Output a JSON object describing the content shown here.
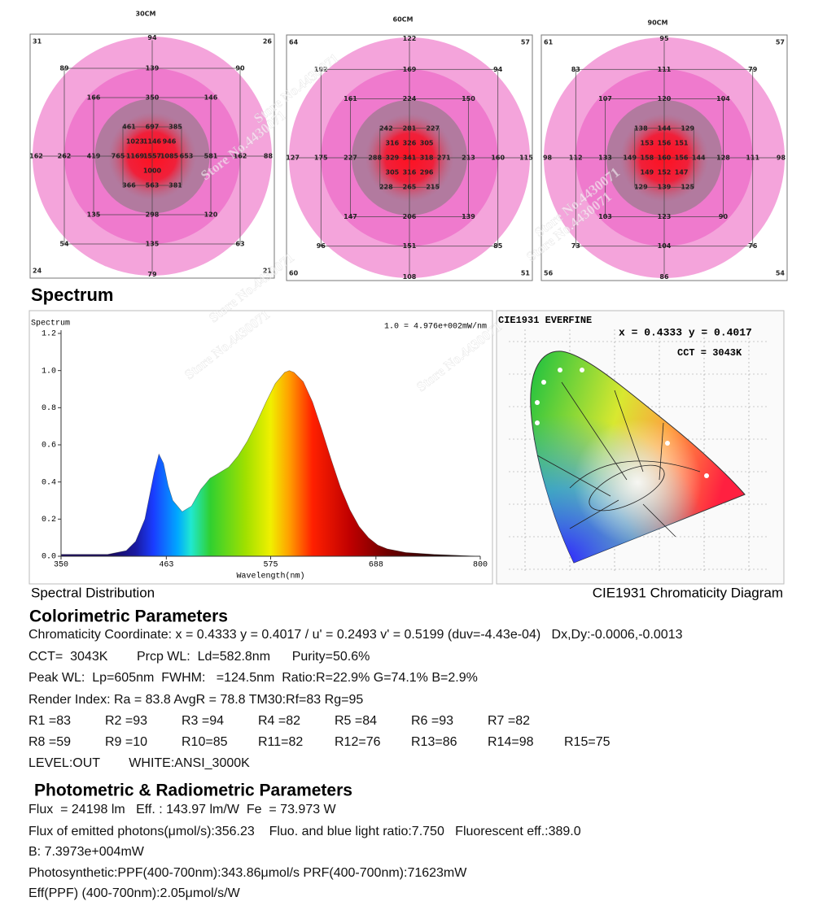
{
  "watermark": "Store No.4430071",
  "light_maps": [
    {
      "title": "30CM",
      "corners": [
        "31",
        "26",
        "24",
        "21"
      ],
      "outer": [
        "94",
        "79",
        "162",
        "88"
      ],
      "ring2": [
        "89",
        "139",
        "90",
        "54",
        "135",
        "63"
      ],
      "ring3": [
        "166",
        "350",
        "146",
        "135",
        "298",
        "120"
      ],
      "sides": [
        "262",
        "419",
        "581",
        "162"
      ],
      "inner": [
        [
          "461",
          "697",
          "385"
        ],
        [
          "1023",
          "1146",
          "946"
        ],
        [
          "765",
          "1169",
          "1557",
          "1085",
          "653"
        ],
        [
          "1000"
        ],
        [
          "366",
          "563",
          "381"
        ]
      ]
    },
    {
      "title": "60CM",
      "corners": [
        "64",
        "57",
        "60",
        "51"
      ],
      "outer": [
        "122",
        "108",
        "127",
        "115"
      ],
      "ring2": [
        "102",
        "169",
        "94",
        "96",
        "151",
        "85"
      ],
      "ring3": [
        "161",
        "224",
        "150",
        "147",
        "206",
        "139"
      ],
      "sides": [
        "175",
        "227",
        "213",
        "160"
      ],
      "inner": [
        [
          "242",
          "281",
          "227"
        ],
        [
          "316",
          "326",
          "305"
        ],
        [
          "288",
          "329",
          "341",
          "318",
          "271"
        ],
        [
          "305",
          "316",
          "296"
        ],
        [
          "228",
          "265",
          "215"
        ]
      ]
    },
    {
      "title": "90CM",
      "corners": [
        "61",
        "57",
        "56",
        "54"
      ],
      "outer": [
        "95",
        "86",
        "98",
        "98"
      ],
      "ring2": [
        "83",
        "111",
        "79",
        "73",
        "104",
        "76"
      ],
      "ring3": [
        "107",
        "120",
        "104",
        "103",
        "123",
        "90"
      ],
      "sides": [
        "112",
        "133",
        "128",
        "111"
      ],
      "inner": [
        [
          "138",
          "144",
          "129"
        ],
        [
          "153",
          "156",
          "151"
        ],
        [
          "149",
          "158",
          "160",
          "156",
          "144"
        ],
        [
          "149",
          "152",
          "147"
        ],
        [
          "129",
          "139",
          "125"
        ]
      ]
    }
  ],
  "section_title": "Spectrum",
  "chart_data": {
    "type": "line",
    "ylabel": "Spectrum",
    "xlabel": "Wavelength(nm)",
    "annotation": "1.0 = 4.976e+002mW/nm",
    "caption": "Spectral Distribution",
    "x": [
      350,
      380,
      400,
      420,
      430,
      440,
      450,
      455,
      460,
      465,
      470,
      480,
      490,
      500,
      510,
      520,
      530,
      540,
      550,
      560,
      570,
      580,
      590,
      595,
      600,
      610,
      620,
      630,
      640,
      650,
      660,
      670,
      680,
      690,
      700,
      720,
      750,
      800
    ],
    "values": [
      0.01,
      0.01,
      0.01,
      0.03,
      0.08,
      0.2,
      0.45,
      0.55,
      0.5,
      0.38,
      0.3,
      0.24,
      0.27,
      0.36,
      0.42,
      0.45,
      0.48,
      0.54,
      0.62,
      0.72,
      0.83,
      0.93,
      0.99,
      1.0,
      0.99,
      0.94,
      0.83,
      0.68,
      0.52,
      0.37,
      0.25,
      0.16,
      0.1,
      0.06,
      0.04,
      0.02,
      0.01,
      0.0
    ],
    "xlim": [
      350,
      800
    ],
    "xticks": [
      350,
      463,
      575,
      688,
      800
    ],
    "ylim": [
      0,
      1.2
    ],
    "yticks": [
      {
        "value": 0,
        "label": "0.0"
      },
      0.2,
      0.4,
      0.6,
      0.8,
      {
        "value": 1,
        "label": "1.0"
      },
      1.2
    ]
  },
  "cie": {
    "header": "CIE1931  EVERFINE",
    "xy": "x = 0.4333 y = 0.4017",
    "cct": "CCT = 3043K",
    "caption": "CIE1931 Chromaticity Diagram"
  },
  "colorimetric": {
    "title": "Colorimetric Parameters",
    "lines": [
      "Chromaticity Coordinate: x = 0.4333 y = 0.4017 / u' = 0.2493 v' = 0.5199 (duv=-4.43e-04)   Dx,Dy:-0.0006,-0.0013",
      "CCT=  3043K        Prcp WL:  Ld=582.8nm      Purity=50.6%",
      "Peak WL:  Lp=605nm  FWHM:   =124.5nm  Ratio:R=22.9% G=74.1% B=2.9%",
      "Render Index: Ra = 83.8 AvgR = 78.8 TM30:Rf=83 Rg=95"
    ],
    "render_rows": [
      [
        "R1 =83",
        "R2 =93",
        "R3 =94",
        "R4 =82",
        "R5 =84",
        "R6 =93",
        "R7 =82"
      ],
      [
        "R8 =59",
        "R9 =10",
        "R10=85",
        "R11=82",
        "R12=76",
        "R13=86",
        "R14=98",
        "R15=75"
      ]
    ],
    "level": "LEVEL:OUT        WHITE:ANSI_3000K"
  },
  "photometric": {
    "title": "Photometric & Radiometric Parameters",
    "lines": [
      "Flux  = 24198 lm   Eff. : 143.97 lm/W  Fe  = 73.973 W",
      "Flux of emitted photons(μmol/s):356.23    Fluo. and blue light ratio:7.750   Fluorescent eff.:389.0",
      "B: 7.3973e+004mW",
      "Photosynthetic:PPF(400-700nm):343.86μmol/s PRF(400-700nm):71623mW",
      "Eff(PPF) (400-700nm):2.05μmol/s/W"
    ]
  }
}
